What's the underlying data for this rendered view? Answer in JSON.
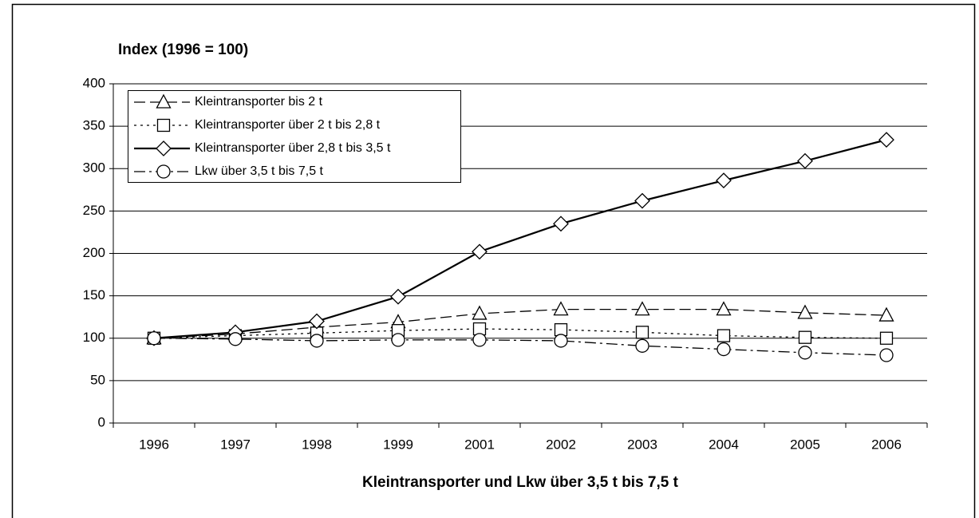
{
  "chart_data": {
    "type": "line",
    "title": "Index (1996 = 100)",
    "x_label": "Kleintransporter und Lkw über 3,5 t bis 7,5 t",
    "categories": [
      "1996",
      "1997",
      "1998",
      "1999",
      "2001",
      "2002",
      "2003",
      "2004",
      "2005",
      "2006"
    ],
    "series": [
      {
        "name": "Kleintransporter bis 2 t",
        "color": "#000000",
        "marker": "triangle",
        "dash": "dashed",
        "values": [
          100,
          105,
          113,
          119,
          129,
          134,
          134,
          134,
          130,
          127
        ]
      },
      {
        "name": "Kleintransporter über 2 t bis 2,8 t",
        "color": "#000000",
        "marker": "square",
        "dash": "dotted",
        "values": [
          100,
          103,
          106,
          109,
          111,
          110,
          107,
          103,
          101,
          100
        ]
      },
      {
        "name": "Kleintransporter über 2,8 t bis 3,5 t",
        "color": "#000000",
        "marker": "diamond",
        "dash": "solid",
        "values": [
          100,
          107,
          120,
          149,
          202,
          235,
          262,
          286,
          309,
          334
        ]
      },
      {
        "name": "Lkw über 3,5 t bis 7,5 t",
        "color": "#000000",
        "marker": "circle",
        "dash": "dashdot",
        "values": [
          100,
          99,
          97,
          98,
          98,
          97,
          91,
          87,
          83,
          80
        ]
      }
    ],
    "ylim": [
      0,
      400
    ],
    "yticks": [
      0,
      50,
      100,
      150,
      200,
      250,
      300,
      350,
      400
    ],
    "grid": true,
    "legend": "upper left"
  }
}
